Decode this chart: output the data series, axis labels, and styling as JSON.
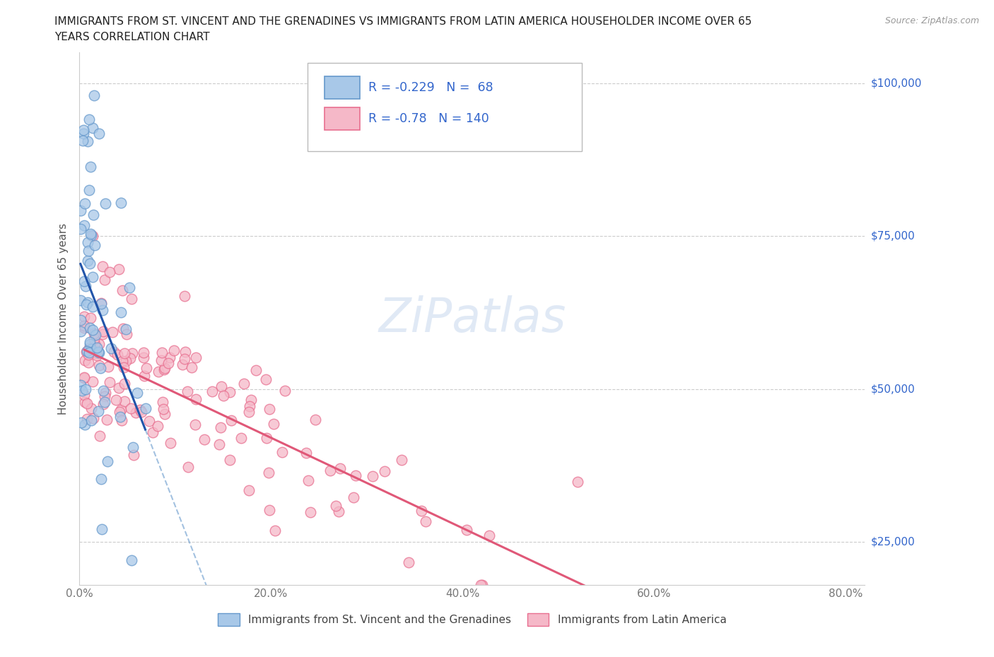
{
  "title_line1": "IMMIGRANTS FROM ST. VINCENT AND THE GRENADINES VS IMMIGRANTS FROM LATIN AMERICA HOUSEHOLDER INCOME OVER 65",
  "title_line2": "YEARS CORRELATION CHART",
  "source": "Source: ZipAtlas.com",
  "ylabel_label": "Householder Income Over 65 years",
  "r_blue": -0.229,
  "n_blue": 68,
  "r_pink": -0.78,
  "n_pink": 140,
  "blue_scatter_color": "#a8c8e8",
  "blue_edge_color": "#6699cc",
  "pink_scatter_color": "#f5b8c8",
  "pink_edge_color": "#e87090",
  "trendline_blue_solid": "#2255aa",
  "trendline_blue_dash": "#6699cc",
  "trendline_pink": "#e05878",
  "watermark": "ZiPatlas",
  "legend1": "Immigrants from St. Vincent and the Grenadines",
  "legend2": "Immigrants from Latin America",
  "xlim": [
    0,
    0.82
  ],
  "ylim": [
    18000,
    105000
  ],
  "ylabel_ticks": [
    25000,
    50000,
    75000,
    100000
  ],
  "ylabel_labels": [
    "$25,000",
    "$50,000",
    "$75,000",
    "$100,000"
  ],
  "xtick_pos": [
    0.0,
    0.2,
    0.4,
    0.6,
    0.8
  ],
  "xtick_labels": [
    "0.0%",
    "20.0%",
    "40.0%",
    "60.0%",
    "80.0%"
  ],
  "legend_text_color": "#3366cc",
  "axis_label_color": "#555555",
  "tick_color": "#777777",
  "grid_color": "#cccccc",
  "right_label_color": "#3366cc"
}
